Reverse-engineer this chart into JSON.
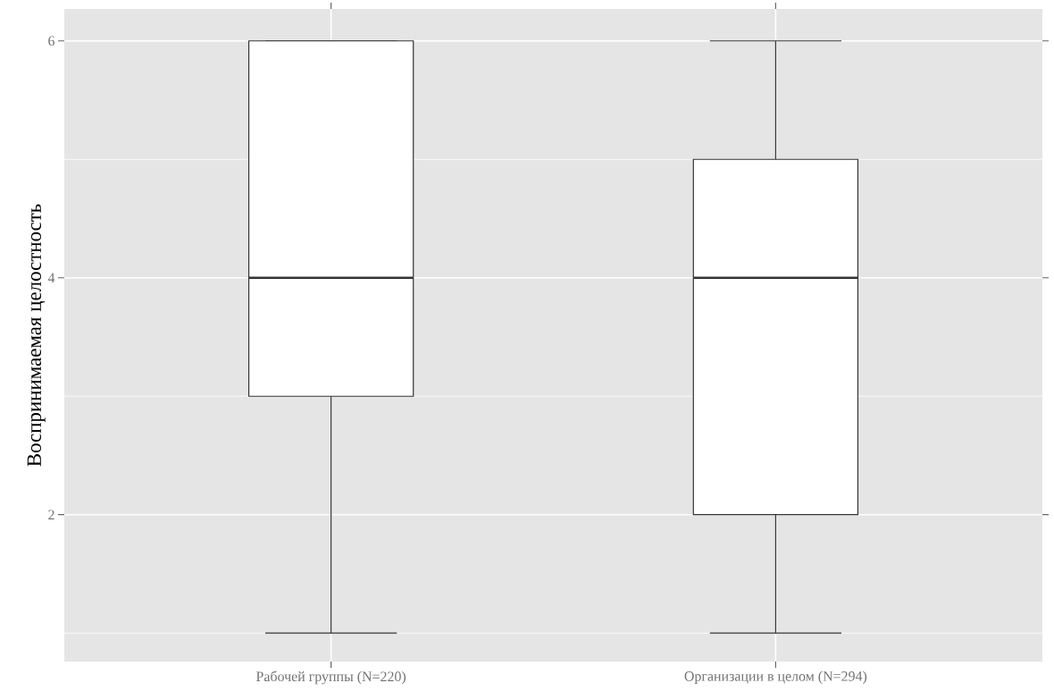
{
  "chart_data": {
    "type": "box",
    "ylabel": "Воспринимаемая целостность",
    "categories": [
      "Рабочей группы (N=220)",
      "Организации в целом (N=294)"
    ],
    "boxes": [
      {
        "low": 1,
        "q1": 3,
        "median": 4,
        "q3": 6,
        "high": 6
      },
      {
        "low": 1,
        "q1": 2,
        "median": 4,
        "q3": 5,
        "high": 6
      }
    ],
    "ylim": [
      0.76,
      6.27
    ],
    "yticks": [
      2,
      4,
      6
    ],
    "grid": true
  }
}
